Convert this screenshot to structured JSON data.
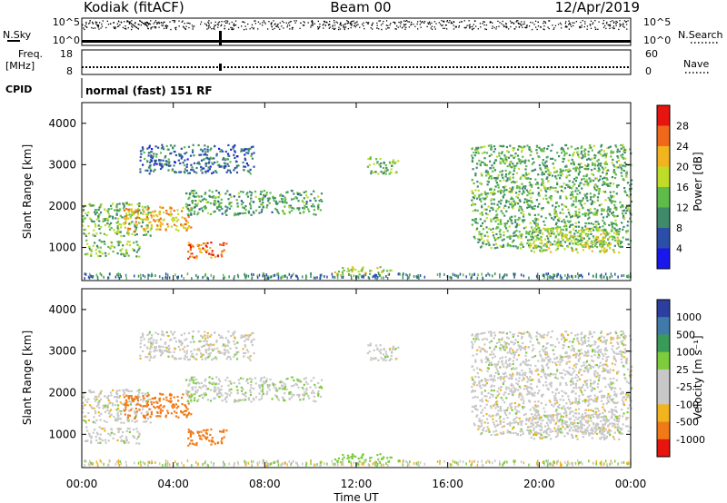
{
  "header": {
    "station": "Kodiak (fitACF)",
    "beam": "Beam 00",
    "date": "12/Apr/2019"
  },
  "top_panels": {
    "nsky_label": "N.Sky",
    "nsearch_label": "N.Search",
    "nsky_ticks": [
      "10^5",
      "10^0"
    ],
    "nsearch_ticks": [
      "10^5",
      "10^0"
    ],
    "freq_label_1": "Freq.",
    "freq_label_2": "[MHz]",
    "freq_ticks": [
      "18",
      "8"
    ],
    "nave_label": "Nave",
    "nave_ticks": [
      "60",
      "0"
    ],
    "cpid_label": "CPID",
    "cpid_text": "normal (fast) 151 RF"
  },
  "chart_data": [
    {
      "type": "heatmap",
      "name": "power",
      "ylabel": "Slant Range [km]",
      "xlabel": "",
      "ylim": [
        200,
        4500
      ],
      "yticks": [
        "1000",
        "2000",
        "3000",
        "4000"
      ],
      "colorbar": {
        "label": "Power [dB]",
        "ticks": [
          "28",
          "24",
          "20",
          "16",
          "12",
          "8",
          "4"
        ],
        "colors": [
          "#e8140f",
          "#f0681a",
          "#f2b41e",
          "#bfdc2a",
          "#5fbc4a",
          "#3e8a6a",
          "#2b4fa8",
          "#1818ee"
        ]
      },
      "regions": [
        {
          "t0": 0.0,
          "t1": 3.0,
          "r0": 1300,
          "r1": 2100,
          "db": 14
        },
        {
          "t0": 1.8,
          "t1": 4.8,
          "r0": 1400,
          "r1": 2000,
          "db": 22
        },
        {
          "t0": 4.5,
          "t1": 10.5,
          "r0": 1800,
          "r1": 2400,
          "db": 12
        },
        {
          "t0": 2.5,
          "t1": 7.5,
          "r0": 2800,
          "r1": 3500,
          "db": 8
        },
        {
          "t0": 0.1,
          "t1": 2.5,
          "r0": 800,
          "r1": 1200,
          "db": 14
        },
        {
          "t0": 4.5,
          "t1": 6.3,
          "r0": 750,
          "r1": 1150,
          "db": 26
        },
        {
          "t0": 12.4,
          "t1": 13.8,
          "r0": 2800,
          "r1": 3200,
          "db": 14
        },
        {
          "t0": 17.0,
          "t1": 24.0,
          "r0": 1000,
          "r1": 3500,
          "db": 13
        },
        {
          "t0": 19.5,
          "t1": 23.5,
          "r0": 900,
          "r1": 1500,
          "db": 18
        },
        {
          "t0": 11.0,
          "t1": 13.5,
          "r0": 350,
          "r1": 550,
          "db": 18
        }
      ]
    },
    {
      "type": "heatmap",
      "name": "velocity",
      "ylabel": "Slant Range [km]",
      "xlabel": "Time UT",
      "xlim": [
        "00:00",
        "00:00"
      ],
      "xticks": [
        "00:00",
        "04:00",
        "08:00",
        "12:00",
        "16:00",
        "20:00",
        "00:00"
      ],
      "ylim": [
        200,
        4500
      ],
      "yticks": [
        "1000",
        "2000",
        "3000",
        "4000"
      ],
      "colorbar": {
        "label": "Velocity [m s⁻¹]",
        "ticks": [
          "1000",
          "500",
          "100",
          "25",
          "-25",
          "-100",
          "-500",
          "-1000"
        ],
        "colors": [
          "#2c3fa0",
          "#3f7aa8",
          "#3a9a5a",
          "#7ccc3c",
          "#c8c8c8",
          "#c8c8c8",
          "#f2b41e",
          "#f07a18",
          "#e8140f"
        ]
      },
      "regions": [
        {
          "t0": 0.0,
          "t1": 3.0,
          "r0": 1300,
          "r1": 2100,
          "v": 0
        },
        {
          "t0": 1.8,
          "t1": 4.8,
          "r0": 1400,
          "r1": 2000,
          "v": -150
        },
        {
          "t0": 4.5,
          "t1": 10.5,
          "r0": 1800,
          "r1": 2400,
          "v": 10
        },
        {
          "t0": 2.5,
          "t1": 7.5,
          "r0": 2800,
          "r1": 3500,
          "v": 0
        },
        {
          "t0": 0.1,
          "t1": 2.5,
          "r0": 800,
          "r1": 1200,
          "v": 0
        },
        {
          "t0": 4.5,
          "t1": 6.3,
          "r0": 750,
          "r1": 1150,
          "v": -250
        },
        {
          "t0": 12.4,
          "t1": 13.8,
          "r0": 2800,
          "r1": 3200,
          "v": 0
        },
        {
          "t0": 17.0,
          "t1": 24.0,
          "r0": 1000,
          "r1": 3500,
          "v": 0
        },
        {
          "t0": 19.5,
          "t1": 23.5,
          "r0": 900,
          "r1": 1500,
          "v": 0
        },
        {
          "t0": 11.0,
          "t1": 13.5,
          "r0": 350,
          "r1": 550,
          "v": 60
        }
      ]
    }
  ]
}
